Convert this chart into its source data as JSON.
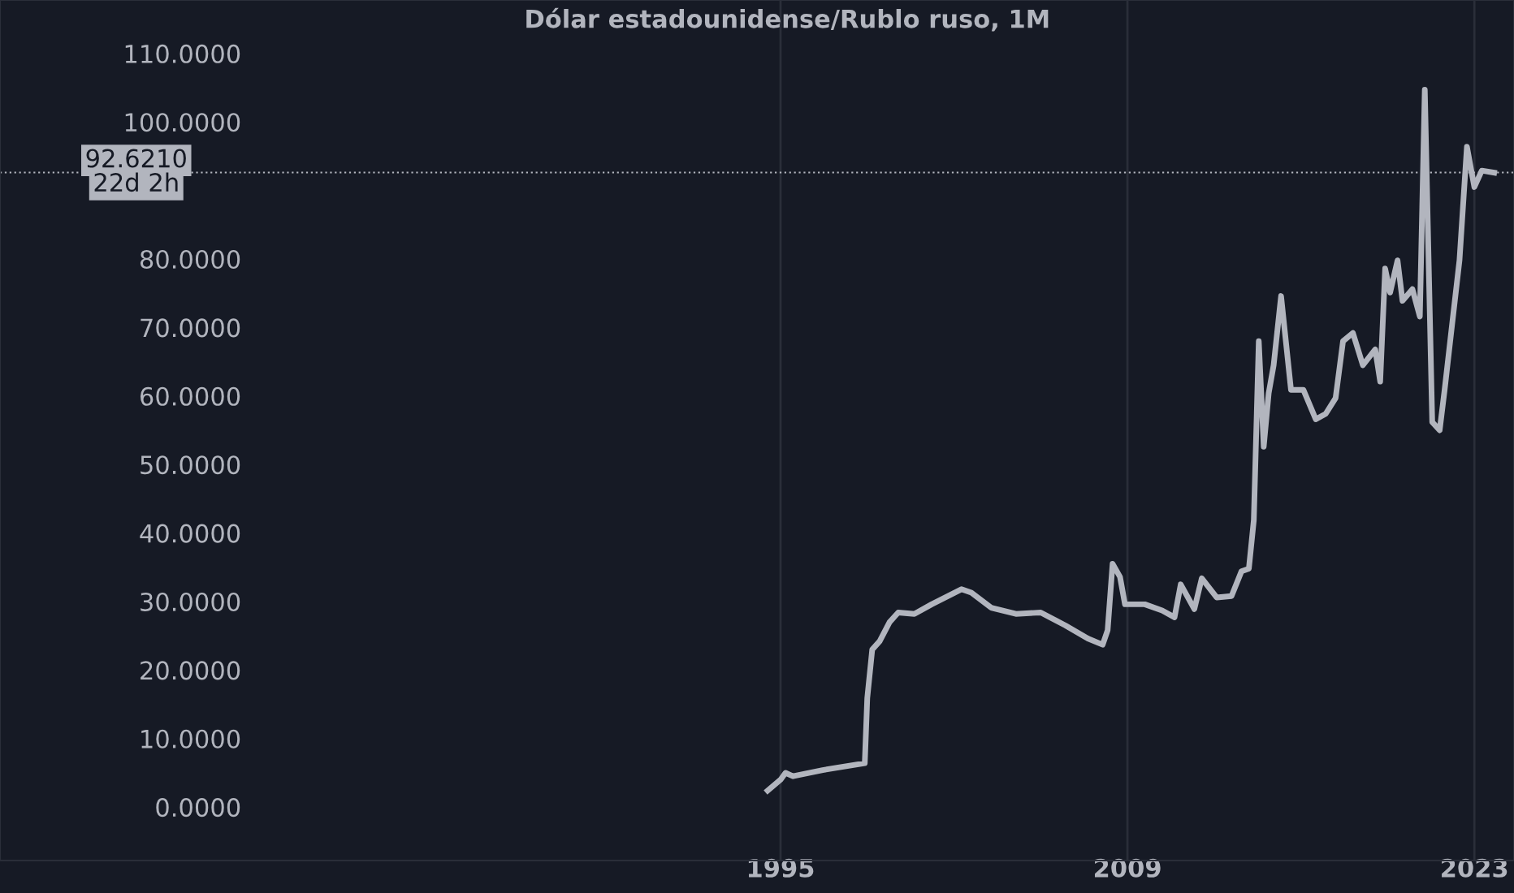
{
  "chart_data": {
    "type": "line",
    "title": "Dólar estadounidense/Rublo ruso, 1M",
    "x": [
      1994.48,
      1995.0,
      1995.2,
      1995.5,
      1996.7,
      1998.4,
      1998.5,
      1998.7,
      1999.0,
      1999.4,
      1999.75,
      2000.4,
      2001.1,
      2002.3,
      2002.7,
      2003.5,
      2004.5,
      2005.5,
      2006.5,
      2007.4,
      2008.0,
      2008.2,
      2008.4,
      2008.7,
      2008.9,
      2009.7,
      2010.4,
      2010.9,
      2011.15,
      2011.7,
      2012.0,
      2012.6,
      2013.2,
      2013.6,
      2013.9,
      2014.1,
      2014.3,
      2014.5,
      2014.7,
      2014.9,
      2015.2,
      2015.6,
      2016.1,
      2016.6,
      2017.0,
      2017.4,
      2017.7,
      2018.1,
      2018.5,
      2019.0,
      2019.2,
      2019.4,
      2019.6,
      2019.9,
      2020.1,
      2020.5,
      2020.8,
      2021.0,
      2021.3,
      2021.6,
      2021.8,
      2022.1,
      2022.4,
      2022.7,
      2023.0,
      2023.3,
      2023.8
    ],
    "series": [
      {
        "color": "#b2b5be",
        "values": [
          2.4,
          4.0,
          5.0,
          4.5,
          5.4,
          6.4,
          15.9,
          23.0,
          24.2,
          27.0,
          28.4,
          28.2,
          29.6,
          31.8,
          31.3,
          29.1,
          28.2,
          28.4,
          26.5,
          24.6,
          23.7,
          25.8,
          35.5,
          33.6,
          29.6,
          29.6,
          28.7,
          27.7,
          32.5,
          28.9,
          33.4,
          30.6,
          30.8,
          34.4,
          34.8,
          41.9,
          68.0,
          52.6,
          60.4,
          64.5,
          74.6,
          60.9,
          60.9,
          56.6,
          57.4,
          59.7,
          68.0,
          69.2,
          64.5,
          66.8,
          62.1,
          78.6,
          75.1,
          79.8,
          73.9,
          75.6,
          71.6,
          104.7,
          56.2,
          55.0,
          60.9,
          70.4,
          79.8,
          96.4,
          90.5,
          92.9,
          92.6
        ]
      }
    ],
    "xlim": [
      1963.5,
      2024.6
    ],
    "ylim": [
      -7.8,
      117.8
    ],
    "xticks": [
      1995,
      2009,
      2023
    ],
    "yticks": [
      {
        "value": 0,
        "label": "0.0000"
      },
      {
        "value": 10,
        "label": "10.0000"
      },
      {
        "value": 20,
        "label": "20.0000"
      },
      {
        "value": 30,
        "label": "30.0000"
      },
      {
        "value": 40,
        "label": "40.0000"
      },
      {
        "value": 50,
        "label": "50.0000"
      },
      {
        "value": 60,
        "label": "60.0000"
      },
      {
        "value": 70,
        "label": "70.0000"
      },
      {
        "value": 80,
        "label": "80.0000"
      },
      {
        "value": 100,
        "label": "100.0000"
      },
      {
        "value": 110,
        "label": "110.0000"
      }
    ],
    "ref_lines": [
      {
        "axis": "y",
        "value": 92.621,
        "label": "92.6210",
        "color": "#b2b5be",
        "line_style": "dotted"
      }
    ],
    "annotations": [
      "22d 2h"
    ],
    "grid": "x",
    "marker": "none",
    "line_style": "solid"
  }
}
